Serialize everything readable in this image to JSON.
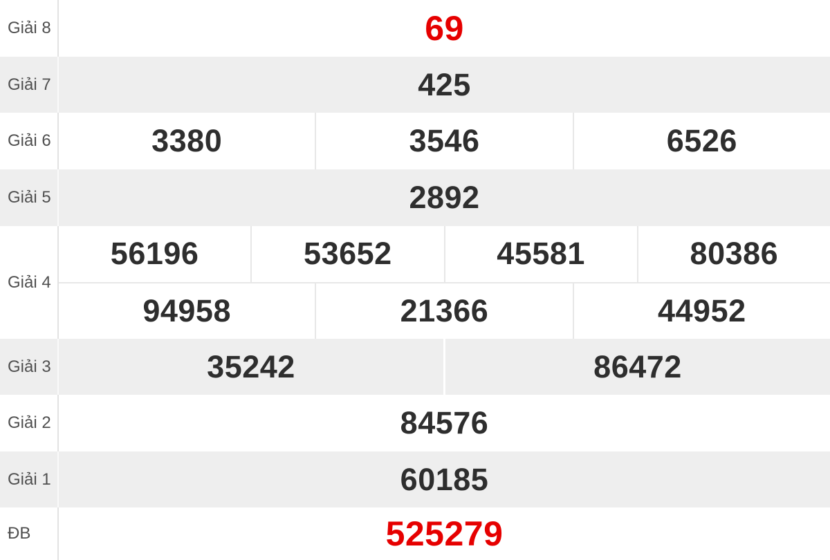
{
  "colors": {
    "highlight": "#e60000",
    "number": "#2e2e2e",
    "label": "#4f4f4f",
    "row_alt_bg": "#eeeeee"
  },
  "prize_table": {
    "rows": [
      {
        "label": "Giải 8",
        "shade": "white",
        "highlight": true,
        "value_rows": [
          [
            "69"
          ]
        ]
      },
      {
        "label": "Giải 7",
        "shade": "gray",
        "highlight": false,
        "value_rows": [
          [
            "425"
          ]
        ]
      },
      {
        "label": "Giải 6",
        "shade": "white",
        "highlight": false,
        "value_rows": [
          [
            "3380",
            "3546",
            "6526"
          ]
        ]
      },
      {
        "label": "Giải 5",
        "shade": "gray",
        "highlight": false,
        "value_rows": [
          [
            "2892"
          ]
        ]
      },
      {
        "label": "Giải 4",
        "shade": "white",
        "highlight": false,
        "value_rows": [
          [
            "56196",
            "53652",
            "45581",
            "80386"
          ],
          [
            "94958",
            "21366",
            "44952"
          ]
        ]
      },
      {
        "label": "Giải 3",
        "shade": "gray",
        "highlight": false,
        "value_rows": [
          [
            "35242",
            "86472"
          ]
        ]
      },
      {
        "label": "Giải 2",
        "shade": "white",
        "highlight": false,
        "value_rows": [
          [
            "84576"
          ]
        ]
      },
      {
        "label": "Giải 1",
        "shade": "gray",
        "highlight": false,
        "value_rows": [
          [
            "60185"
          ]
        ]
      },
      {
        "label": "ĐB",
        "shade": "white",
        "highlight": true,
        "value_rows": [
          [
            "525279"
          ]
        ]
      }
    ]
  }
}
